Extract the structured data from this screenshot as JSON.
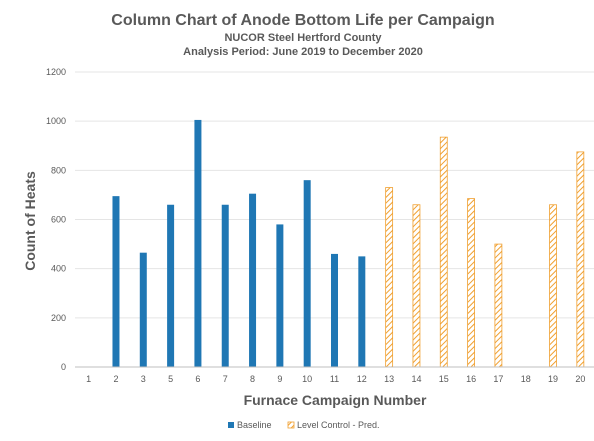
{
  "chart_data": {
    "type": "bar",
    "title": "Column Chart of Anode Bottom Life per Campaign",
    "subtitle_lines": [
      "NUCOR Steel Hertford County",
      "Analysis Period: June 2019 to December 2020"
    ],
    "xlabel": "Furnace Campaign Number",
    "ylabel": "Count of Heats",
    "ylim": [
      0,
      1200
    ],
    "yticks": [
      0,
      200,
      400,
      600,
      800,
      1000,
      1200
    ],
    "categories": [
      "1",
      "2",
      "3",
      "5",
      "6",
      "7",
      "8",
      "9",
      "10",
      "11",
      "12",
      "13",
      "14",
      "15",
      "16",
      "17",
      "18",
      "19",
      "20"
    ],
    "series": [
      {
        "name": "Baseline",
        "color": "#1f77b4",
        "pattern": "solid",
        "values": [
          null,
          695,
          465,
          660,
          1005,
          660,
          705,
          580,
          760,
          460,
          450,
          null,
          null,
          null,
          null,
          null,
          null,
          null,
          null
        ]
      },
      {
        "name": "Level Control - Pred.",
        "color": "#f0a030",
        "pattern": "hatch",
        "values": [
          null,
          null,
          null,
          null,
          null,
          null,
          null,
          null,
          null,
          null,
          null,
          730,
          660,
          935,
          685,
          500,
          null,
          660,
          875
        ]
      }
    ],
    "grid": true,
    "legend_position": "bottom"
  }
}
